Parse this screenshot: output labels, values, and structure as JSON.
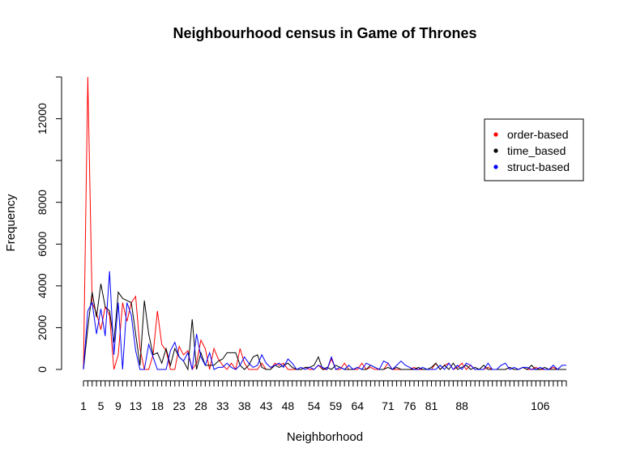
{
  "chart_data": {
    "type": "line",
    "title": "Neighbourhood census in Game of Thrones",
    "xlabel": "Neighborhood",
    "ylabel": "Frequency",
    "xlim": [
      1,
      112
    ],
    "ylim": [
      0,
      14000
    ],
    "y_ticks": [
      0,
      2000,
      4000,
      6000,
      8000,
      12000
    ],
    "x_tick_labels": [
      "1",
      "5",
      "9",
      "13",
      "18",
      "23",
      "28",
      "33",
      "38",
      "43",
      "48",
      "54",
      "59",
      "64",
      "71",
      "76",
      "81",
      "88",
      "106"
    ],
    "x_tick_positions": [
      1,
      5,
      9,
      13,
      18,
      23,
      28,
      33,
      38,
      43,
      48,
      54,
      59,
      64,
      71,
      76,
      81,
      88,
      106
    ],
    "grid": false,
    "legend_position": "top-right",
    "legend": [
      {
        "label": "order-based",
        "color": "#ff0000"
      },
      {
        "label": "time_based",
        "color": "#000000"
      },
      {
        "label": "struct-based",
        "color": "#0000ff"
      }
    ],
    "series": [
      {
        "name": "order-based",
        "color": "#ff0000",
        "values": [
          0,
          14000,
          3200,
          2700,
          1900,
          3000,
          2600,
          0,
          700,
          3200,
          2300,
          3200,
          3500,
          1000,
          0,
          0,
          700,
          2800,
          1200,
          900,
          0,
          0,
          1100,
          700,
          900,
          0,
          300,
          1400,
          1000,
          0,
          1000,
          500,
          200,
          0,
          300,
          0,
          1000,
          300,
          0,
          0,
          0,
          300,
          0,
          0,
          300,
          200,
          300,
          0,
          0,
          0,
          0,
          100,
          0,
          0,
          200,
          0,
          0,
          500,
          0,
          0,
          300,
          0,
          0,
          0,
          300,
          0,
          100,
          0,
          0,
          0,
          300,
          0,
          0,
          0,
          0,
          0,
          100,
          0,
          0,
          0,
          0,
          300,
          0,
          200,
          300,
          0,
          100,
          300,
          0,
          200,
          0,
          0,
          0,
          100,
          0,
          0,
          0,
          0,
          100,
          0,
          0,
          100,
          0,
          0,
          100,
          0,
          0,
          0,
          100,
          0,
          0,
          0
        ]
      },
      {
        "name": "time_based",
        "color": "#000000",
        "values": [
          0,
          2000,
          3700,
          2500,
          4100,
          3000,
          2800,
          1300,
          3700,
          3400,
          3300,
          3200,
          1700,
          200,
          3300,
          1700,
          700,
          800,
          300,
          1000,
          200,
          1000,
          600,
          400,
          0,
          2400,
          0,
          800,
          200,
          200,
          200,
          400,
          500,
          800,
          800,
          800,
          200,
          0,
          200,
          600,
          700,
          100,
          0,
          0,
          200,
          100,
          200,
          300,
          100,
          0,
          0,
          100,
          100,
          200,
          600,
          0,
          100,
          0,
          200,
          100,
          0,
          0,
          0,
          100,
          0,
          0,
          200,
          100,
          0,
          0,
          100,
          0,
          100,
          0,
          0,
          0,
          0,
          100,
          0,
          0,
          100,
          300,
          0,
          200,
          0,
          300,
          0,
          100,
          200,
          0,
          100,
          0,
          200,
          0,
          0,
          0,
          0,
          0,
          100,
          0,
          0,
          100,
          0,
          200,
          0,
          0,
          100,
          0,
          0,
          0,
          0,
          0
        ]
      },
      {
        "name": "struct-based",
        "color": "#0000ff",
        "values": [
          0,
          2800,
          3200,
          1700,
          2900,
          1600,
          4700,
          700,
          3200,
          0,
          3200,
          2600,
          900,
          0,
          0,
          1200,
          600,
          0,
          0,
          0,
          900,
          1300,
          600,
          400,
          800,
          0,
          1700,
          600,
          200,
          800,
          0,
          100,
          100,
          300,
          100,
          0,
          200,
          600,
          300,
          100,
          200,
          700,
          300,
          100,
          200,
          300,
          100,
          500,
          300,
          0,
          100,
          0,
          100,
          0,
          200,
          100,
          0,
          600,
          0,
          100,
          0,
          200,
          0,
          100,
          0,
          300,
          200,
          100,
          0,
          400,
          300,
          0,
          200,
          400,
          200,
          100,
          0,
          0,
          100,
          0,
          0,
          0,
          200,
          0,
          300,
          0,
          200,
          0,
          300,
          200,
          0,
          0,
          0,
          300,
          0,
          0,
          200,
          300,
          0,
          100,
          0,
          100,
          100,
          0,
          0,
          100,
          0,
          0,
          200,
          0,
          200,
          200
        ]
      }
    ]
  }
}
